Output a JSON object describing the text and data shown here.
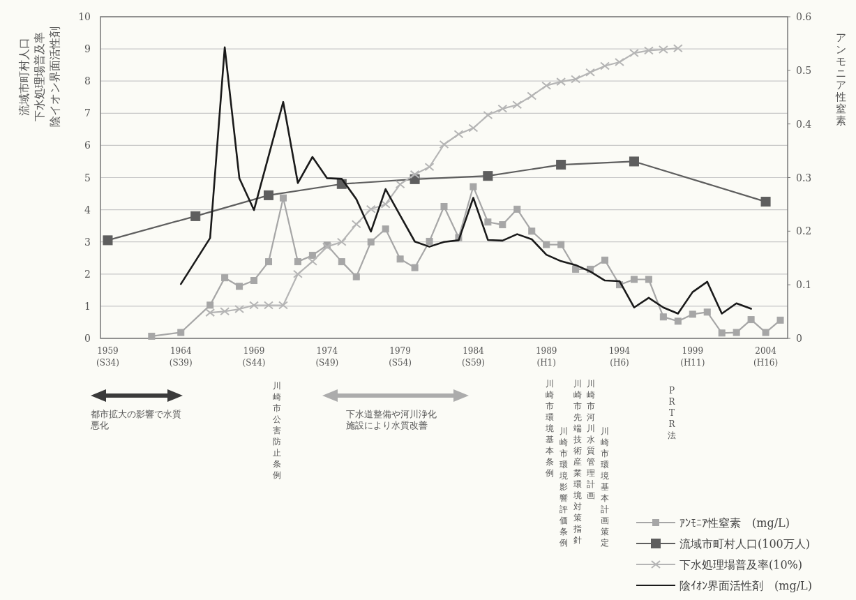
{
  "chart_data": {
    "type": "line",
    "categories": [
      "1959\n(S34)",
      null,
      null,
      null,
      null,
      "1964\n(S39)",
      null,
      null,
      null,
      null,
      "1969\n(S44)",
      null,
      null,
      null,
      null,
      "1974\n(S49)",
      null,
      null,
      null,
      null,
      "1979\n(S54)",
      null,
      null,
      null,
      null,
      "1984\n(S59)",
      null,
      null,
      null,
      null,
      "1989\n(H1)",
      null,
      null,
      null,
      null,
      "1994\n(H6)",
      null,
      null,
      null,
      null,
      "1999\n(H11)",
      null,
      null,
      null,
      null,
      "2004\n(H16)",
      null
    ],
    "ylim": [
      0,
      10
    ],
    "yticks": [
      0,
      1,
      2,
      3,
      4,
      5,
      6,
      7,
      8,
      9,
      10
    ],
    "y2lim": [
      0,
      0.6
    ],
    "y2ticks": [
      0,
      0.1,
      0.2,
      0.3,
      0.4,
      0.5,
      0.6
    ],
    "ylabel": "流域市町村人口下水処理場普及率陰イオン界面活性剤",
    "y2label": "アンモニア性窒素",
    "grid": "y",
    "legend": "bottom right",
    "series": [
      {
        "name": "ｱﾝﾓﾆｱ性窒素　(mg/L)",
        "color": "#a6a6a6",
        "marker": "square",
        "axis": "y2",
        "values": [
          null,
          null,
          null,
          0.004,
          null,
          0.011,
          null,
          0.062,
          0.113,
          0.097,
          0.108,
          0.143,
          0.262,
          0.143,
          0.155,
          0.174,
          0.143,
          0.115,
          0.18,
          0.204,
          0.148,
          0.132,
          0.181,
          0.246,
          0.188,
          0.283,
          0.217,
          0.212,
          0.241,
          0.2,
          0.175,
          0.175,
          0.129,
          0.129,
          0.146,
          0.1,
          0.11,
          0.11,
          0.04,
          0.032,
          0.045,
          0.049,
          0.01,
          0.011,
          0.035,
          0.011,
          0.034
        ]
      },
      {
        "name": "流域市町村人口(100万人)",
        "color": "#5e5e5e",
        "marker": "square",
        "values": [
          3.05,
          null,
          null,
          null,
          null,
          null,
          3.8,
          null,
          null,
          null,
          null,
          4.45,
          null,
          null,
          null,
          null,
          4.8,
          null,
          null,
          null,
          null,
          4.95,
          null,
          null,
          null,
          null,
          5.05,
          null,
          null,
          null,
          null,
          5.4,
          null,
          null,
          null,
          null,
          5.5,
          null,
          null,
          null,
          null,
          null,
          null,
          null,
          null,
          4.25,
          null
        ]
      },
      {
        "name": "下水処理場普及率(10%)",
        "color": "#b5b5b5",
        "marker": "cross",
        "values": [
          null,
          null,
          null,
          null,
          null,
          null,
          null,
          0.8,
          0.84,
          0.91,
          1.03,
          1.03,
          1.03,
          2.0,
          2.39,
          2.85,
          3.0,
          3.55,
          4.02,
          4.17,
          4.79,
          5.1,
          5.33,
          6.03,
          6.35,
          6.54,
          6.94,
          7.14,
          7.26,
          7.54,
          7.86,
          7.98,
          8.06,
          8.27,
          8.47,
          8.59,
          8.87,
          8.95,
          8.98,
          9.02,
          null,
          null,
          null,
          null,
          null,
          null,
          null
        ]
      },
      {
        "name": "陰ｲｵﾝ界面活性剤　(mg/L)",
        "color": "#1a1a1a",
        "marker": "none",
        "values": [
          null,
          null,
          null,
          null,
          null,
          1.69,
          null,
          3.12,
          9.05,
          4.98,
          3.99,
          5.67,
          7.35,
          4.83,
          5.64,
          4.98,
          4.96,
          4.33,
          3.32,
          4.64,
          3.82,
          3.01,
          2.85,
          3.0,
          3.05,
          4.37,
          3.06,
          3.04,
          3.24,
          3.08,
          2.6,
          2.4,
          2.28,
          2.08,
          1.8,
          1.78,
          0.96,
          1.26,
          0.96,
          0.77,
          1.44,
          1.76,
          0.77,
          1.09,
          0.92,
          null,
          null
        ]
      }
    ],
    "annotations": [
      "都市拡大の影響で水質悪化",
      "川崎市公害防止条例",
      "下水道整備や河川浄化施設により水質改善",
      "川崎市環境基本条例",
      "川崎市環境影響評価条例",
      "川崎市先端技術産業環境対策指針",
      "川崎市河川水質管理計画",
      "川崎市環境基本計画策定",
      "PRTR法"
    ]
  }
}
